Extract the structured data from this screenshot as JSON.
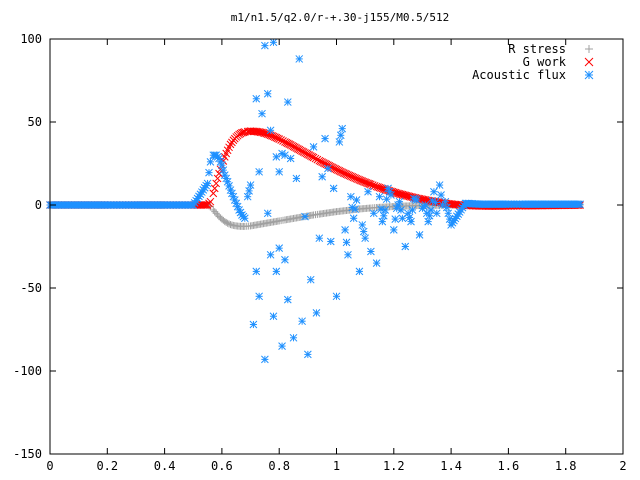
{
  "chart_data": {
    "type": "scatter",
    "title": "m1/n1.5/q2.0/r-+.30-j155/M0.5/512",
    "xlabel": "",
    "ylabel": "",
    "xlim": [
      0,
      2
    ],
    "ylim": [
      -150,
      100
    ],
    "xticks": [
      {
        "value": 0,
        "label": "0"
      },
      {
        "value": 0.2,
        "label": "0.2"
      },
      {
        "value": 0.4,
        "label": "0.4"
      },
      {
        "value": 0.6,
        "label": "0.6"
      },
      {
        "value": 0.8,
        "label": "0.8"
      },
      {
        "value": 1.0,
        "label": "1"
      },
      {
        "value": 1.2,
        "label": "1.2"
      },
      {
        "value": 1.4,
        "label": "1.4"
      },
      {
        "value": 1.6,
        "label": "1.6"
      },
      {
        "value": 1.8,
        "label": "1.8"
      },
      {
        "value": 2.0,
        "label": "2"
      }
    ],
    "yticks": [
      {
        "value": 100,
        "label": "100"
      },
      {
        "value": 50,
        "label": "50"
      },
      {
        "value": 0,
        "label": "0"
      },
      {
        "value": -50,
        "label": "-50"
      },
      {
        "value": -100,
        "label": "-100"
      },
      {
        "value": -150,
        "label": "-150"
      }
    ],
    "grid": false,
    "legend_position": "top-right",
    "series": [
      {
        "name": "R stress",
        "marker": "plus",
        "color": "#a0a0a0",
        "x": [
          0.0,
          0.1,
          0.2,
          0.3,
          0.4,
          0.5,
          0.55,
          0.56,
          0.57,
          0.58,
          0.59,
          0.6,
          0.61,
          0.62,
          0.63,
          0.64,
          0.65,
          0.66,
          0.67,
          0.68,
          0.7,
          0.72,
          0.74,
          0.76,
          0.78,
          0.8,
          0.82,
          0.84,
          0.86,
          0.88,
          0.9,
          0.92,
          0.94,
          0.96,
          0.98,
          1.0,
          1.02,
          1.04,
          1.06,
          1.08,
          1.1,
          1.12,
          1.14,
          1.16,
          1.18,
          1.2,
          1.22,
          1.24,
          1.26,
          1.28,
          1.3,
          1.32,
          1.34,
          1.36,
          1.38,
          1.4,
          1.45,
          1.5,
          1.55,
          1.6,
          1.65,
          1.7,
          1.75,
          1.8,
          1.85
        ],
        "y": [
          0,
          0,
          0,
          0,
          0,
          0,
          0,
          -1,
          -3,
          -5,
          -7,
          -8.5,
          -10,
          -11,
          -11.8,
          -12.3,
          -12.6,
          -12.8,
          -12.9,
          -12.9,
          -12.6,
          -12,
          -11.4,
          -10.8,
          -10.2,
          -9.6,
          -9,
          -8.4,
          -7.8,
          -7.2,
          -6.6,
          -6,
          -5.5,
          -5,
          -4.5,
          -4,
          -3.6,
          -3.2,
          -2.8,
          -2.4,
          -2.1,
          -1.8,
          -1.5,
          -1.3,
          -1.1,
          -0.9,
          -0.7,
          -0.6,
          -0.5,
          -0.4,
          -0.3,
          -0.25,
          -0.2,
          -0.15,
          -0.1,
          -0.05,
          0,
          0,
          0,
          0,
          0,
          0,
          0,
          0,
          0
        ]
      },
      {
        "name": "G work",
        "marker": "cross",
        "color": "#ff0000",
        "x": [
          0.0,
          0.1,
          0.2,
          0.3,
          0.4,
          0.5,
          0.55,
          0.56,
          0.57,
          0.58,
          0.59,
          0.6,
          0.61,
          0.62,
          0.63,
          0.64,
          0.65,
          0.66,
          0.67,
          0.68,
          0.69,
          0.7,
          0.72,
          0.74,
          0.76,
          0.78,
          0.8,
          0.82,
          0.84,
          0.86,
          0.88,
          0.9,
          0.92,
          0.94,
          0.96,
          0.98,
          1.0,
          1.02,
          1.04,
          1.06,
          1.08,
          1.1,
          1.12,
          1.14,
          1.16,
          1.18,
          1.2,
          1.22,
          1.24,
          1.26,
          1.28,
          1.3,
          1.32,
          1.34,
          1.36,
          1.38,
          1.4,
          1.42,
          1.44,
          1.46,
          1.48,
          1.5,
          1.55,
          1.6,
          1.65,
          1.7,
          1.75,
          1.8,
          1.85
        ],
        "y": [
          0,
          0,
          0,
          0,
          0,
          0,
          0,
          2,
          7,
          13,
          19,
          24,
          29,
          33,
          36.5,
          39,
          41,
          42.5,
          43.5,
          44,
          44.3,
          44.5,
          44.3,
          43.7,
          42.7,
          41.3,
          39.7,
          38,
          36.2,
          34.3,
          32.4,
          30.5,
          28.6,
          26.7,
          24.9,
          23.1,
          21.4,
          19.7,
          18.1,
          16.6,
          15.1,
          13.7,
          12.4,
          11.1,
          9.9,
          8.8,
          7.7,
          6.7,
          5.8,
          4.9,
          4.1,
          3.4,
          2.7,
          2.1,
          1.5,
          1,
          0.6,
          0.2,
          -0.1,
          -0.3,
          -0.5,
          -0.6,
          -0.7,
          -0.6,
          -0.5,
          -0.4,
          -0.3,
          -0.2,
          -0.1
        ]
      },
      {
        "name": "Acoustic flux",
        "marker": "star",
        "color": "#1e90ff",
        "x": [
          0.0,
          0.1,
          0.2,
          0.3,
          0.4,
          0.5,
          0.55,
          0.56,
          0.57,
          0.58,
          0.59,
          0.6,
          0.61,
          0.62,
          0.63,
          0.64,
          0.65,
          0.66,
          0.67,
          0.68,
          0.69,
          0.7,
          0.71,
          0.72,
          0.72,
          0.73,
          0.73,
          0.74,
          0.75,
          0.75,
          0.76,
          0.76,
          0.77,
          0.77,
          0.78,
          0.78,
          0.79,
          0.79,
          0.8,
          0.8,
          0.81,
          0.81,
          0.82,
          0.82,
          0.83,
          0.83,
          0.84,
          0.85,
          0.86,
          0.87,
          0.88,
          0.89,
          0.9,
          0.91,
          0.92,
          0.93,
          0.94,
          0.95,
          0.96,
          0.97,
          0.98,
          0.99,
          1.0,
          1.01,
          1.02,
          1.03,
          1.04,
          1.05,
          1.06,
          1.07,
          1.08,
          1.09,
          1.1,
          1.11,
          1.12,
          1.13,
          1.14,
          1.15,
          1.16,
          1.17,
          1.18,
          1.19,
          1.2,
          1.21,
          1.22,
          1.23,
          1.24,
          1.25,
          1.26,
          1.27,
          1.28,
          1.29,
          1.3,
          1.31,
          1.32,
          1.33,
          1.34,
          1.35,
          1.36,
          1.37,
          1.38,
          1.4,
          1.45,
          1.5,
          1.55,
          1.6,
          1.65,
          1.7,
          1.75,
          1.8,
          1.85
        ],
        "y": [
          0,
          0,
          0,
          0,
          0,
          0,
          13,
          26,
          30,
          30,
          28,
          24,
          18,
          14,
          9,
          5,
          1,
          -3,
          -6,
          -8,
          5,
          12,
          -72,
          -40,
          64,
          -55,
          20,
          55,
          96,
          -93,
          67,
          -5,
          -30,
          45,
          -67,
          98,
          -40,
          29,
          -26,
          20,
          -85,
          31,
          -33,
          30,
          62,
          -57,
          28,
          -80,
          16,
          88,
          -70,
          -7,
          -90,
          -45,
          35,
          -65,
          -20,
          17,
          40,
          22,
          -22,
          10,
          -55,
          38,
          46,
          -15,
          -30,
          5,
          -8,
          3,
          -40,
          -12,
          -20,
          8,
          -28,
          -5,
          -35,
          5,
          -10,
          -3,
          10,
          6,
          -15,
          -2,
          2,
          -8,
          -25,
          -5,
          -10,
          4,
          3,
          -18,
          -2,
          0,
          -10,
          -3,
          8,
          -5,
          12,
          0,
          2,
          -12,
          1,
          0.5,
          0.5,
          0.5,
          0.5,
          0.5,
          0.5,
          0.5,
          0.5
        ]
      }
    ]
  }
}
